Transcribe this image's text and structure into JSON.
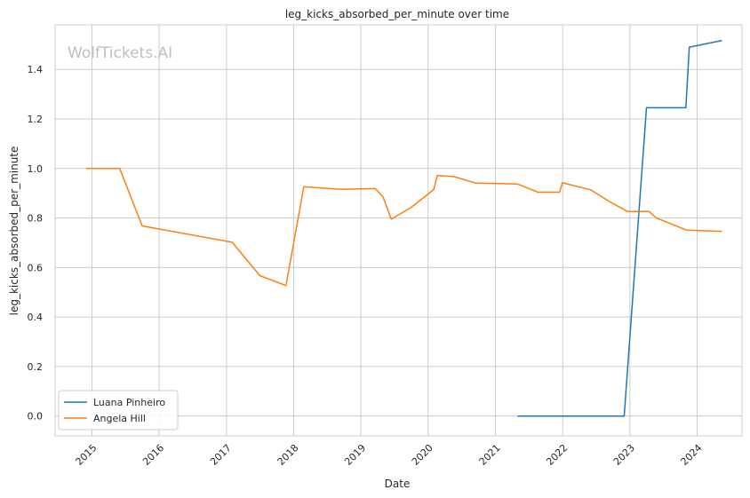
{
  "watermark": "WolfTickets.AI",
  "chart_data": {
    "type": "line",
    "title": "leg_kicks_absorbed_per_minute over time",
    "xlabel": "Date",
    "ylabel": "leg_kicks_absorbed_per_minute",
    "x_ticks": [
      "2015",
      "2016",
      "2017",
      "2018",
      "2019",
      "2020",
      "2021",
      "2022",
      "2023",
      "2024"
    ],
    "y_ticks": [
      "0.0",
      "0.2",
      "0.4",
      "0.6",
      "0.8",
      "1.0",
      "1.2",
      "1.4"
    ],
    "xlim": [
      "2014-06-15",
      "2024-09-01"
    ],
    "ylim": [
      -0.08,
      1.58
    ],
    "grid": true,
    "legend_position": "bottom-left",
    "series": [
      {
        "name": "Luana Pinheiro",
        "color": "#1f77b4",
        "points": [
          [
            "2021-05-01",
            0.0
          ],
          [
            "2022-12-01",
            0.0
          ],
          [
            "2023-04-01",
            1.245
          ],
          [
            "2023-11-01",
            1.245
          ],
          [
            "2023-11-20",
            1.49
          ],
          [
            "2024-05-15",
            1.517
          ]
        ]
      },
      {
        "name": "Angela Hill",
        "color": "#ff7f0e",
        "points": [
          [
            "2014-12-01",
            1.0
          ],
          [
            "2015-06-01",
            1.0
          ],
          [
            "2015-10-01",
            0.768
          ],
          [
            "2017-02-01",
            0.702
          ],
          [
            "2017-07-01",
            0.567
          ],
          [
            "2017-11-20",
            0.527
          ],
          [
            "2018-02-25",
            0.926
          ],
          [
            "2018-09-15",
            0.916
          ],
          [
            "2019-03-20",
            0.919
          ],
          [
            "2019-05-01",
            0.885
          ],
          [
            "2019-06-15",
            0.795
          ],
          [
            "2019-10-01",
            0.843
          ],
          [
            "2020-02-01",
            0.915
          ],
          [
            "2020-02-20",
            0.972
          ],
          [
            "2020-05-20",
            0.967
          ],
          [
            "2020-09-15",
            0.941
          ],
          [
            "2021-05-01",
            0.937
          ],
          [
            "2021-08-20",
            0.904
          ],
          [
            "2021-12-15",
            0.904
          ],
          [
            "2021-12-30",
            0.942
          ],
          [
            "2022-06-01",
            0.914
          ],
          [
            "2022-09-15",
            0.865
          ],
          [
            "2022-12-20",
            0.826
          ],
          [
            "2023-04-15",
            0.826
          ],
          [
            "2023-05-25",
            0.8
          ],
          [
            "2023-11-05",
            0.751
          ],
          [
            "2024-05-15",
            0.746
          ]
        ]
      }
    ]
  }
}
